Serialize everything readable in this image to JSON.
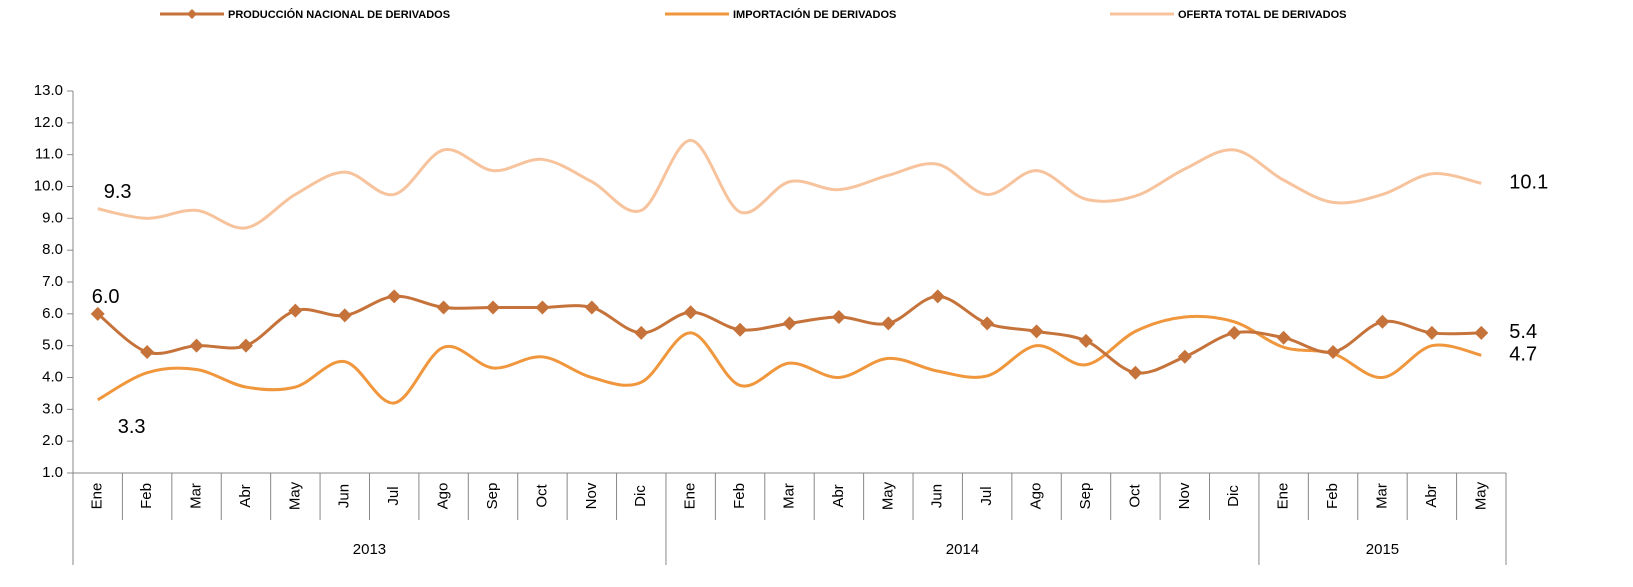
{
  "chart_data": {
    "type": "line",
    "categories": [
      "Ene",
      "Feb",
      "Mar",
      "Abr",
      "May",
      "Jun",
      "Jul",
      "Ago",
      "Sep",
      "Oct",
      "Nov",
      "Dic",
      "Ene",
      "Feb",
      "Mar",
      "Abr",
      "May",
      "Jun",
      "Jul",
      "Ago",
      "Sep",
      "Oct",
      "Nov",
      "Dic",
      "Ene",
      "Feb",
      "Mar",
      "Abr",
      "May"
    ],
    "groups": [
      {
        "label": "2013",
        "count": 12
      },
      {
        "label": "2014",
        "count": 12
      },
      {
        "label": "2015",
        "count": 5
      }
    ],
    "series": [
      {
        "name": "PRODUCCIÓN NACIONAL DE DERIVADOS",
        "color": "#c5733a",
        "marker": "diamond",
        "values": [
          6.0,
          4.8,
          5.0,
          5.0,
          6.1,
          5.95,
          6.55,
          6.2,
          6.2,
          6.2,
          6.2,
          5.4,
          6.05,
          5.5,
          5.7,
          5.9,
          5.7,
          6.55,
          5.7,
          5.45,
          5.15,
          4.15,
          4.65,
          5.4,
          5.25,
          4.8,
          5.75,
          5.4,
          5.4
        ],
        "value_labels": [
          "6.0",
          null,
          null,
          null,
          null,
          null,
          null,
          null,
          null,
          null,
          null,
          null,
          null,
          null,
          null,
          null,
          null,
          null,
          null,
          null,
          null,
          null,
          null,
          null,
          null,
          null,
          null,
          null,
          "5.4"
        ]
      },
      {
        "name": "IMPORTACIÓN DE DERIVADOS",
        "color": "#f0963c",
        "values": [
          3.3,
          4.15,
          4.25,
          3.7,
          3.7,
          4.5,
          3.2,
          4.95,
          4.3,
          4.65,
          4.0,
          3.85,
          5.4,
          3.75,
          4.45,
          4.0,
          4.6,
          4.2,
          4.05,
          5.0,
          4.4,
          5.45,
          5.9,
          5.75,
          4.95,
          4.75,
          4.0,
          5.0,
          4.7
        ],
        "value_labels": [
          "3.3",
          null,
          null,
          null,
          null,
          null,
          null,
          null,
          null,
          null,
          null,
          null,
          null,
          null,
          null,
          null,
          null,
          null,
          null,
          null,
          null,
          null,
          null,
          null,
          null,
          null,
          null,
          null,
          "4.7"
        ]
      },
      {
        "name": "OFERTA TOTAL DE DERIVADOS",
        "color": "#f7c39d",
        "values": [
          9.3,
          9.0,
          9.25,
          8.7,
          9.75,
          10.45,
          9.75,
          11.15,
          10.5,
          10.85,
          10.15,
          9.25,
          11.45,
          9.2,
          10.15,
          9.9,
          10.35,
          10.7,
          9.75,
          10.5,
          9.6,
          9.7,
          10.55,
          11.15,
          10.2,
          9.5,
          9.75,
          10.4,
          10.1
        ],
        "value_labels": [
          "9.3",
          null,
          null,
          null,
          null,
          null,
          null,
          null,
          null,
          null,
          null,
          null,
          null,
          null,
          null,
          null,
          null,
          null,
          null,
          null,
          null,
          null,
          null,
          null,
          null,
          null,
          null,
          null,
          "10.1"
        ]
      }
    ],
    "ylim": [
      1,
      13
    ],
    "yticks": [
      {
        "value": 1,
        "label": "1.0"
      },
      {
        "value": 2,
        "label": "2.0"
      },
      {
        "value": 3,
        "label": "3.0"
      },
      {
        "value": 4,
        "label": "4.0"
      },
      {
        "value": 5,
        "label": "5.0"
      },
      {
        "value": 6,
        "label": "6.0"
      },
      {
        "value": 7,
        "label": "7.0"
      },
      {
        "value": 8,
        "label": "8.0"
      },
      {
        "value": 9,
        "label": "9.0"
      },
      {
        "value": 10,
        "label": "10.0"
      },
      {
        "value": 11,
        "label": "11.0"
      },
      {
        "value": 12,
        "label": "12.0"
      },
      {
        "value": 13,
        "label": "13.0"
      }
    ],
    "legend": "top",
    "grid": false
  }
}
